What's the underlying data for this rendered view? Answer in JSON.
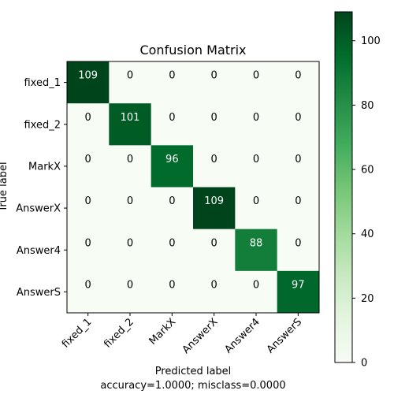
{
  "chart_data": {
    "type": "heatmap",
    "title": "Confusion Matrix",
    "xlabel": "Predicted label",
    "ylabel": "True label",
    "footer": "accuracy=1.0000; misclass=0.0000",
    "row_labels": [
      "fixed_1",
      "fixed_2",
      "MarkX",
      "AnswerX",
      "Answer4",
      "AnswerS"
    ],
    "col_labels": [
      "fixed_1",
      "fixed_2",
      "MarkX",
      "AnswerX",
      "Answer4",
      "AnswerS"
    ],
    "matrix": [
      [
        109,
        0,
        0,
        0,
        0,
        0
      ],
      [
        0,
        101,
        0,
        0,
        0,
        0
      ],
      [
        0,
        0,
        96,
        0,
        0,
        0
      ],
      [
        0,
        0,
        0,
        109,
        0,
        0
      ],
      [
        0,
        0,
        0,
        0,
        88,
        0
      ],
      [
        0,
        0,
        0,
        0,
        0,
        97
      ]
    ],
    "colormap": "Greens",
    "vmin": 0,
    "vmax": 109,
    "colorbar_ticks": [
      0,
      20,
      40,
      60,
      80,
      100
    ],
    "grid": false
  }
}
